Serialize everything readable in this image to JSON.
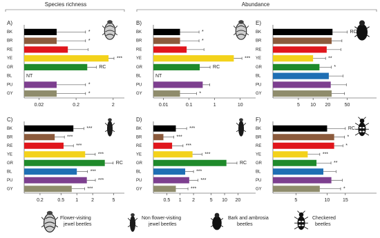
{
  "headers": [
    "Species richness",
    "Abundance"
  ],
  "legend": [
    [
      "Flower-visiting",
      "jewel beetles"
    ],
    [
      "Non flower-visiting",
      "jewel beetles"
    ],
    [
      "Bark and ambrosia",
      "beetles"
    ],
    [
      "Checkered",
      "beetles"
    ]
  ],
  "chart_data": [
    {
      "type": "bar",
      "title": "A)",
      "xscale": "log",
      "categories": [
        "BK",
        "BR",
        "RE",
        "YE",
        "GR",
        "BL",
        "PU",
        "GY"
      ],
      "colors": [
        "#000000",
        "#8b5a3c",
        "#e0161c",
        "#f3d21b",
        "#1f8a2b",
        "#1f6fb4",
        "#7d3f8f",
        "#8f8c6c"
      ],
      "values": [
        0.06,
        0.06,
        0.12,
        1.5,
        0.4,
        null,
        0.06,
        0.06
      ],
      "errors": [
        0.3,
        0.3,
        0.3,
        0.6,
        0.3,
        null,
        0.3,
        0.3
      ],
      "annotations": [
        "*",
        "*",
        null,
        "***",
        "RC",
        "NT",
        "*",
        "*"
      ],
      "xlim": [
        0.008,
        4
      ],
      "xticks": [
        0.02,
        0.2,
        2
      ]
    },
    {
      "type": "bar",
      "title": "B)",
      "xscale": "log",
      "categories": [
        "BK",
        "BR",
        "RE",
        "YE",
        "GR",
        "BL",
        "PU",
        "GY"
      ],
      "colors": [
        "#000000",
        "#8b5a3c",
        "#e0161c",
        "#f3d21b",
        "#1f8a2b",
        "#1f6fb4",
        "#7d3f8f",
        "#8f8c6c"
      ],
      "values": [
        0.044,
        0.044,
        0.08,
        5.6,
        0.26,
        null,
        0.34,
        0.044
      ],
      "errors": [
        0.2,
        0.2,
        0.3,
        6,
        0.4,
        null,
        0.3,
        0.15
      ],
      "annotations": [
        "*",
        "*",
        null,
        "***",
        "RC",
        "NT",
        null,
        "*"
      ],
      "xlim": [
        0.004,
        40
      ],
      "xticks": [
        0.01,
        0.1,
        1,
        10
      ]
    },
    {
      "type": "bar",
      "title": "E)",
      "xscale": "log",
      "categories": [
        "BK",
        "BR",
        "RE",
        "YE",
        "GR",
        "BL",
        "PU",
        "GY"
      ],
      "colors": [
        "#000000",
        "#8b5a3c",
        "#e0161c",
        "#f3d21b",
        "#1f8a2b",
        "#1f6fb4",
        "#7d3f8f",
        "#8f8c6c"
      ],
      "values": [
        25,
        24,
        19,
        10,
        13.5,
        21,
        23,
        24
      ],
      "errors": [
        25,
        15,
        18,
        8,
        10,
        20,
        25,
        20
      ],
      "annotations": [
        "RC",
        null,
        null,
        "**",
        "*",
        null,
        null,
        null
      ],
      "xlim": [
        1.5,
        200
      ],
      "xticks": [
        5,
        10,
        20,
        50
      ]
    },
    {
      "type": "bar",
      "title": "C)",
      "xscale": "log",
      "categories": [
        "BK",
        "BR",
        "RE",
        "YE",
        "GR",
        "BL",
        "PU",
        "GY"
      ],
      "colors": [
        "#000000",
        "#8b5a3c",
        "#e0161c",
        "#f3d21b",
        "#1f8a2b",
        "#1f6fb4",
        "#7d3f8f",
        "#8f8c6c"
      ],
      "values": [
        0.86,
        0.38,
        0.56,
        1.44,
        3.4,
        1.0,
        1.55,
        0.8
      ],
      "errors": [
        0.5,
        0.2,
        0.3,
        0.8,
        1.5,
        0.6,
        0.7,
        0.6
      ],
      "annotations": [
        "***",
        "***",
        "***",
        "***",
        "RC",
        "***",
        "***",
        "***"
      ],
      "xlim": [
        0.1,
        8
      ],
      "xticks": [
        0.2,
        0.5,
        1,
        2,
        5
      ]
    },
    {
      "type": "bar",
      "title": "D)",
      "xscale": "log",
      "categories": [
        "BK",
        "BR",
        "RE",
        "YE",
        "GR",
        "BL",
        "PU",
        "GY"
      ],
      "colors": [
        "#000000",
        "#8b5a3c",
        "#e0161c",
        "#f3d21b",
        "#1f8a2b",
        "#1f6fb4",
        "#7d3f8f",
        "#8f8c6c"
      ],
      "values": [
        0.8,
        0.42,
        0.66,
        1.9,
        11,
        1.3,
        1.6,
        0.8
      ],
      "errors": [
        0.6,
        0.3,
        0.5,
        1.2,
        8,
        0.7,
        0.9,
        0.7
      ],
      "annotations": [
        "***",
        "***",
        "***",
        "***",
        "RC",
        "***",
        "***",
        "***"
      ],
      "xlim": [
        0.25,
        50
      ],
      "xticks": [
        0.5,
        1,
        2,
        5,
        10,
        20
      ]
    },
    {
      "type": "bar",
      "title": "F)",
      "xscale": "log",
      "categories": [
        "BK",
        "BR",
        "RE",
        "YE",
        "GR",
        "BL",
        "PU",
        "GY"
      ],
      "colors": [
        "#000000",
        "#8b5a3c",
        "#e0161c",
        "#f3d21b",
        "#1f8a2b",
        "#1f6fb4",
        "#7d3f8f",
        "#8f8c6c"
      ],
      "values": [
        10,
        11.7,
        11.7,
        6.5,
        7.9,
        9.2,
        11,
        8.5
      ],
      "errors": [
        5,
        3,
        2.5,
        2,
        3,
        3,
        3,
        5
      ],
      "annotations": [
        "RC",
        "*",
        "*",
        "***",
        "**",
        null,
        null,
        "*"
      ],
      "xlim": [
        3,
        30
      ],
      "xticks": [
        5,
        10,
        15
      ]
    }
  ]
}
